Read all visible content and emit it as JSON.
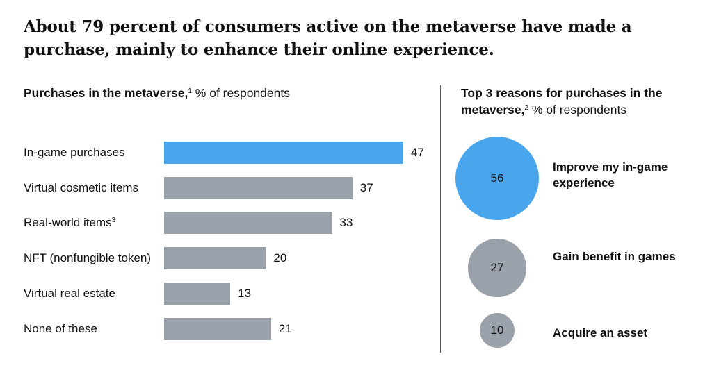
{
  "title": "About 79 percent of consumers active on the metaverse have made a purchase, mainly to enhance their online experience.",
  "colors": {
    "highlight": "#4aa6ec",
    "neutral": "#9ba1aa",
    "divider": "#555555"
  },
  "chart_data": [
    {
      "type": "bar",
      "orientation": "horizontal",
      "title_bold": "Purchases in the metaverse,",
      "title_sup": "1",
      "title_rest": " % of respondents",
      "categories": [
        "In-game purchases",
        "Virtual cosmetic items",
        "Real-world items",
        "NFT (nonfungible token)",
        "Virtual real estate",
        "None of these"
      ],
      "category_sups": [
        "",
        "",
        "3",
        "",
        "",
        ""
      ],
      "values": [
        47,
        37,
        33,
        20,
        13,
        21
      ],
      "highlight_index": 0,
      "xlim": [
        0,
        47
      ],
      "grid": false
    },
    {
      "type": "bubble",
      "title_bold": "Top 3 reasons for purchases in the metaverse,",
      "title_sup": "2",
      "title_rest": " % of respondents",
      "categories": [
        "Improve my in-game experience",
        "Gain benefit in games",
        "Acquire an asset"
      ],
      "values": [
        56,
        27,
        10
      ],
      "highlight_index": 0
    }
  ]
}
